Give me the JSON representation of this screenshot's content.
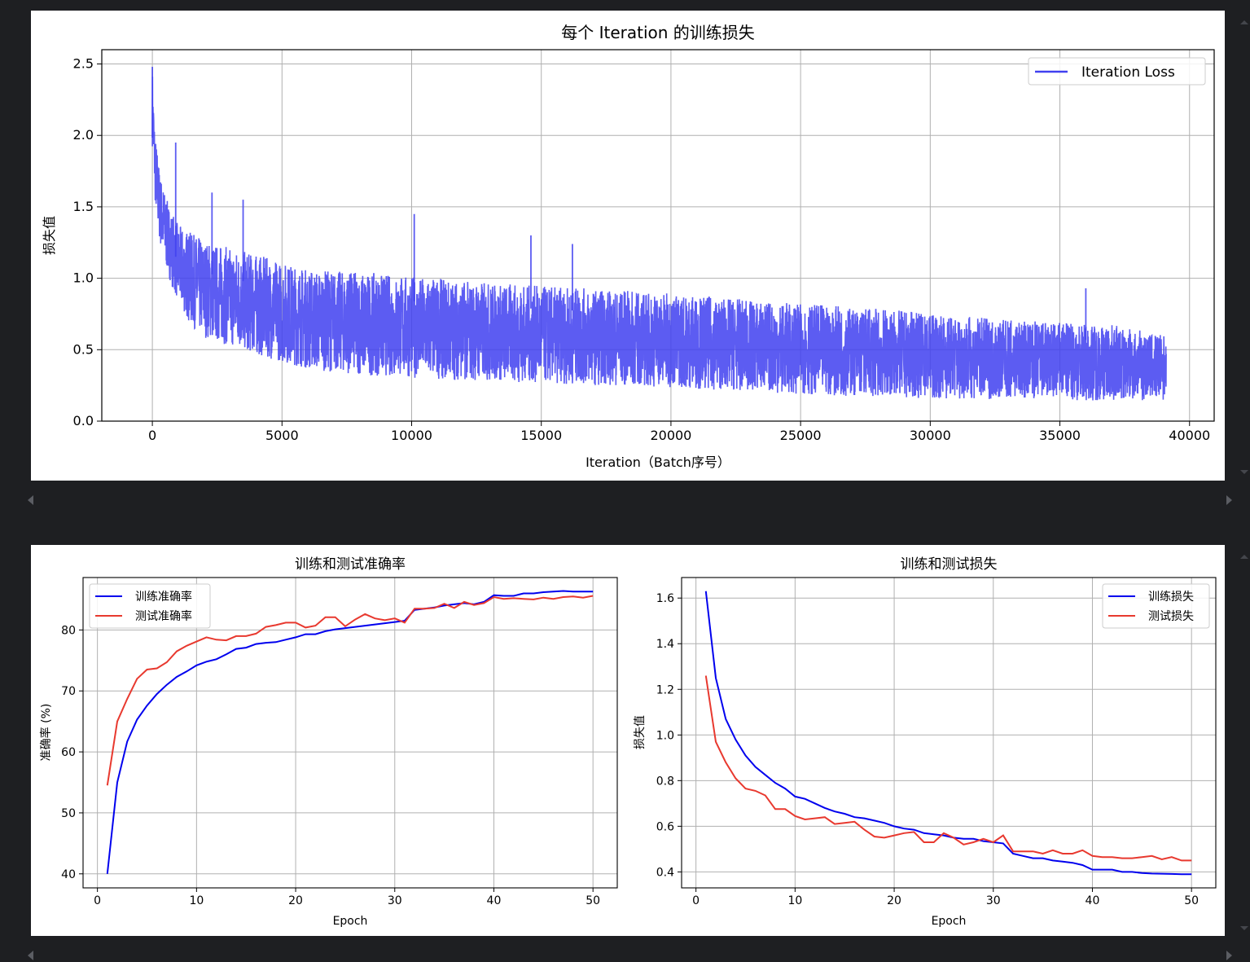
{
  "chart_data": [
    {
      "type": "line",
      "title": "每个 Iteration 的训练损失",
      "xlabel": "Iteration（Batch序号）",
      "ylabel": "损失值",
      "xlim": [
        -1950,
        40950
      ],
      "ylim": [
        0.0,
        2.6
      ],
      "xticks": [
        "0",
        "5000",
        "10000",
        "15000",
        "20000",
        "25000",
        "30000",
        "35000",
        "40000"
      ],
      "yticks": [
        "0.0",
        "0.5",
        "1.0",
        "1.5",
        "2.0",
        "2.5"
      ],
      "grid": true,
      "legend_position": "upper right",
      "series": [
        {
          "name": "Iteration Loss",
          "color": "#4040f0",
          "total_points": 39100,
          "envelope_x": [
            0,
            100,
            300,
            600,
            1000,
            1500,
            2000,
            3000,
            4000,
            5000,
            6000,
            8000,
            10000,
            12000,
            15000,
            18000,
            20000,
            23000,
            25000,
            28000,
            30000,
            33000,
            35000,
            37000,
            39100
          ],
          "envelope_high": [
            2.48,
            2.05,
            1.75,
            1.55,
            1.4,
            1.35,
            1.3,
            1.25,
            1.2,
            1.15,
            1.1,
            1.08,
            1.05,
            1.02,
            0.98,
            0.95,
            0.93,
            0.88,
            0.85,
            0.82,
            0.78,
            0.74,
            0.72,
            0.7,
            0.62
          ],
          "envelope_low": [
            1.95,
            1.55,
            1.25,
            1.05,
            0.85,
            0.7,
            0.62,
            0.56,
            0.5,
            0.45,
            0.4,
            0.36,
            0.34,
            0.32,
            0.3,
            0.28,
            0.27,
            0.24,
            0.22,
            0.2,
            0.19,
            0.18,
            0.17,
            0.17,
            0.17
          ],
          "spikes": [
            [
              0,
              2.48
            ],
            [
              900,
              1.95
            ],
            [
              2300,
              1.6
            ],
            [
              3500,
              1.55
            ],
            [
              10100,
              1.45
            ],
            [
              16200,
              1.24
            ],
            [
              14600,
              1.3
            ],
            [
              36000,
              0.93
            ]
          ]
        }
      ]
    },
    {
      "type": "line",
      "title": "训练和测试准确率",
      "xlabel": "Epoch",
      "ylabel": "准确率 (%)",
      "xlim": [
        -1.45,
        52.45
      ],
      "ylim": [
        37.7,
        88.6
      ],
      "xticks": [
        "0",
        "10",
        "20",
        "30",
        "40",
        "50"
      ],
      "yticks": [
        "40",
        "50",
        "60",
        "70",
        "80"
      ],
      "grid": true,
      "legend_position": "upper left",
      "x": [
        1,
        2,
        3,
        4,
        5,
        6,
        7,
        8,
        9,
        10,
        11,
        12,
        13,
        14,
        15,
        16,
        17,
        18,
        19,
        20,
        21,
        22,
        23,
        24,
        25,
        26,
        27,
        28,
        29,
        30,
        31,
        32,
        33,
        34,
        35,
        36,
        37,
        38,
        39,
        40,
        41,
        42,
        43,
        44,
        45,
        46,
        47,
        48,
        49,
        50
      ],
      "series": [
        {
          "name": "训练准确率",
          "color": "#0000ee",
          "values": [
            40.0,
            55.0,
            61.7,
            65.3,
            67.6,
            69.5,
            71.0,
            72.3,
            73.2,
            74.2,
            74.8,
            75.2,
            76.0,
            76.9,
            77.1,
            77.7,
            77.9,
            78.0,
            78.4,
            78.8,
            79.3,
            79.3,
            79.8,
            80.1,
            80.3,
            80.5,
            80.7,
            80.9,
            81.1,
            81.3,
            81.5,
            83.3,
            83.5,
            83.7,
            84.0,
            84.2,
            84.4,
            84.2,
            84.6,
            85.7,
            85.6,
            85.6,
            86.0,
            86.0,
            86.2,
            86.3,
            86.4,
            86.3,
            86.3,
            86.3
          ]
        },
        {
          "name": "测试准确率",
          "color": "#e8392f",
          "values": [
            54.5,
            65.0,
            68.7,
            72.0,
            73.5,
            73.7,
            74.7,
            76.5,
            77.4,
            78.1,
            78.8,
            78.4,
            78.3,
            79.0,
            79.0,
            79.4,
            80.5,
            80.8,
            81.2,
            81.2,
            80.4,
            80.7,
            82.1,
            82.1,
            80.6,
            81.7,
            82.6,
            81.9,
            81.6,
            81.9,
            81.2,
            83.5,
            83.5,
            83.6,
            84.3,
            83.6,
            84.6,
            84.1,
            84.4,
            85.4,
            85.1,
            85.2,
            85.1,
            85.0,
            85.3,
            85.1,
            85.4,
            85.5,
            85.3,
            85.6
          ]
        }
      ]
    },
    {
      "type": "line",
      "title": "训练和测试损失",
      "xlabel": "Epoch",
      "ylabel": "损失值",
      "xlim": [
        -1.45,
        52.45
      ],
      "ylim": [
        0.33,
        1.69
      ],
      "xticks": [
        "0",
        "10",
        "20",
        "30",
        "40",
        "50"
      ],
      "yticks": [
        "0.4",
        "0.6",
        "0.8",
        "1.0",
        "1.2",
        "1.4",
        "1.6"
      ],
      "grid": true,
      "legend_position": "upper right",
      "x": [
        1,
        2,
        3,
        4,
        5,
        6,
        7,
        8,
        9,
        10,
        11,
        12,
        13,
        14,
        15,
        16,
        17,
        18,
        19,
        20,
        21,
        22,
        23,
        24,
        25,
        26,
        27,
        28,
        29,
        30,
        31,
        32,
        33,
        34,
        35,
        36,
        37,
        38,
        39,
        40,
        41,
        42,
        43,
        44,
        45,
        46,
        47,
        48,
        49,
        50
      ],
      "series": [
        {
          "name": "训练损失",
          "color": "#0000ee",
          "values": [
            1.63,
            1.25,
            1.07,
            0.98,
            0.91,
            0.86,
            0.825,
            0.79,
            0.765,
            0.73,
            0.72,
            0.7,
            0.68,
            0.665,
            0.655,
            0.64,
            0.635,
            0.625,
            0.615,
            0.6,
            0.59,
            0.585,
            0.57,
            0.565,
            0.56,
            0.55,
            0.545,
            0.545,
            0.535,
            0.53,
            0.525,
            0.48,
            0.47,
            0.46,
            0.46,
            0.45,
            0.445,
            0.44,
            0.43,
            0.41,
            0.41,
            0.41,
            0.4,
            0.4,
            0.395,
            0.393,
            0.392,
            0.391,
            0.39,
            0.39
          ]
        },
        {
          "name": "测试损失",
          "color": "#e8392f",
          "values": [
            1.26,
            0.97,
            0.88,
            0.81,
            0.765,
            0.755,
            0.735,
            0.675,
            0.675,
            0.645,
            0.63,
            0.635,
            0.64,
            0.61,
            0.615,
            0.62,
            0.585,
            0.555,
            0.55,
            0.56,
            0.57,
            0.575,
            0.53,
            0.53,
            0.57,
            0.55,
            0.52,
            0.53,
            0.545,
            0.53,
            0.56,
            0.49,
            0.49,
            0.49,
            0.48,
            0.495,
            0.48,
            0.48,
            0.495,
            0.47,
            0.465,
            0.465,
            0.46,
            0.46,
            0.465,
            0.47,
            0.455,
            0.465,
            0.45,
            0.45
          ]
        }
      ]
    }
  ]
}
